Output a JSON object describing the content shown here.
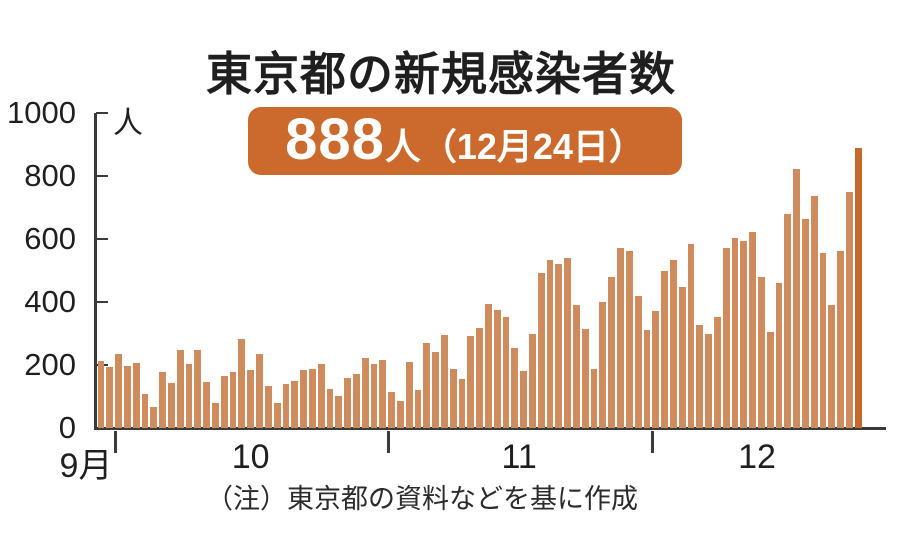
{
  "title": "東京都の新規感染者数",
  "badge": {
    "value": "888",
    "suffix": "人（12月24日）"
  },
  "y_axis": {
    "unit": "人",
    "ticks": [
      0,
      200,
      400,
      600,
      800,
      1000
    ]
  },
  "x_axis": {
    "month_labels": [
      "9月",
      "10",
      "11",
      "12"
    ]
  },
  "source_note": "（注）東京都の資料などを基に作成",
  "colors": {
    "bar": "#ce8b5d",
    "bar_highlight": "#c5692e",
    "badge_bg": "#cc6a2d",
    "axis": "#3a3a3a",
    "text": "#1f1f1f"
  },
  "chart_data": {
    "type": "bar",
    "title": "東京都の新規感染者数",
    "ylabel": "人",
    "ylim": [
      0,
      1000
    ],
    "grid": false,
    "highlight": {
      "value": 888,
      "date": "12月24日",
      "label": "888人（12月24日）"
    },
    "months": [
      {
        "label": "9月",
        "start_day": 29,
        "values": [
          212,
          194
        ]
      },
      {
        "label": "10",
        "start_day": 1,
        "values": [
          235,
          196,
          207,
          108,
          66,
          177,
          142,
          248,
          203,
          249,
          146,
          78,
          166,
          177,
          284,
          184,
          235,
          132,
          78,
          139,
          150,
          185,
          186,
          203,
          124,
          102,
          158,
          171,
          221,
          204,
          215
        ]
      },
      {
        "label": "11",
        "start_day": 1,
        "values": [
          116,
          87,
          209,
          122,
          269,
          242,
          294,
          189,
          157,
          293,
          317,
          393,
          374,
          352,
          255,
          180,
          298,
          493,
          534,
          522,
          539,
          391,
          314,
          186,
          401,
          481,
          570,
          561,
          418,
          311
        ]
      },
      {
        "label": "12",
        "start_day": 1,
        "values": [
          372,
          500,
          533,
          449,
          584,
          327,
          299,
          352,
          572,
          602,
          595,
          621,
          480,
          305,
          460,
          678,
          822,
          664,
          736,
          556,
          392,
          563,
          748,
          888
        ]
      }
    ]
  }
}
